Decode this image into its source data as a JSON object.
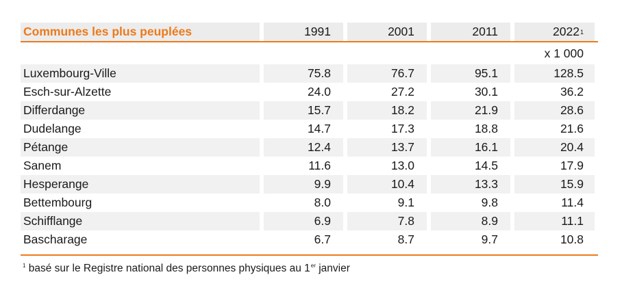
{
  "table": {
    "title": "Communes les plus peuplées",
    "years": [
      {
        "label": "1991",
        "note": ""
      },
      {
        "label": "2001",
        "note": ""
      },
      {
        "label": "2011",
        "note": ""
      },
      {
        "label": "2022",
        "note": "1"
      }
    ],
    "unit": "x 1 000",
    "rows": [
      {
        "name": "Luxembourg-Ville",
        "values": [
          "75.8",
          "76.7",
          "95.1",
          "128.5"
        ]
      },
      {
        "name": "Esch-sur-Alzette",
        "values": [
          "24.0",
          "27.2",
          "30.1",
          "36.2"
        ]
      },
      {
        "name": "Differdange",
        "values": [
          "15.7",
          "18.2",
          "21.9",
          "28.6"
        ]
      },
      {
        "name": "Dudelange",
        "values": [
          "14.7",
          "17.3",
          "18.8",
          "21.6"
        ]
      },
      {
        "name": "Pétange",
        "values": [
          "12.4",
          "13.7",
          "16.1",
          "20.4"
        ]
      },
      {
        "name": "Sanem",
        "values": [
          "11.6",
          "13.0",
          "14.5",
          "17.9"
        ]
      },
      {
        "name": "Hesperange",
        "values": [
          "9.9",
          "10.4",
          "13.3",
          "15.9"
        ]
      },
      {
        "name": "Bettembourg",
        "values": [
          "8.0",
          "9.1",
          "9.8",
          "11.4"
        ]
      },
      {
        "name": "Schifflange",
        "values": [
          "6.9",
          "7.8",
          "8.9",
          "11.1"
        ]
      },
      {
        "name": "Bascharage",
        "values": [
          "6.7",
          "8.7",
          "9.7",
          "10.8"
        ]
      }
    ]
  },
  "footnote": {
    "marker": "1",
    "text_before": " basé sur le Registre national des personnes physiques au 1",
    "ordinal": "er",
    "text_after": " janvier"
  },
  "colors": {
    "accent": "#ec7a1c",
    "row_shade": "#f1f1f1",
    "header_shade": "#ececec"
  }
}
